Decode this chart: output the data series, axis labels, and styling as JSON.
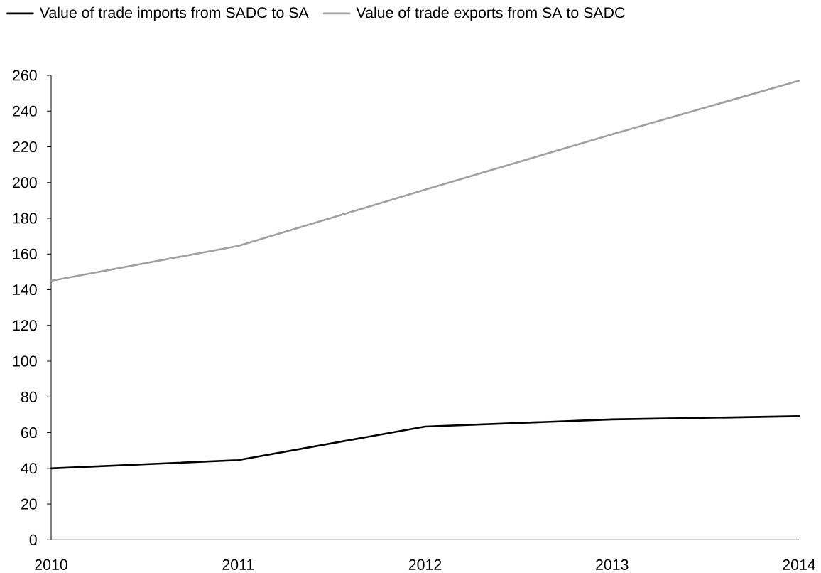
{
  "chart_data": {
    "type": "line",
    "categories": [
      "2010",
      "2011",
      "2012",
      "2013",
      "2014"
    ],
    "series": [
      {
        "name": "Value of trade imports from SADC to SA",
        "color": "#000000",
        "values": [
          40,
          44.6,
          63.4,
          67.4,
          69.2
        ]
      },
      {
        "name": "Value of trade exports from SA to SADC",
        "color": "#a0a0a0",
        "values": [
          145,
          164.5,
          196,
          227,
          257
        ]
      }
    ],
    "ylim": [
      0,
      260
    ],
    "yticks": [
      0,
      20,
      40,
      60,
      80,
      100,
      120,
      140,
      160,
      180,
      200,
      220,
      240,
      260
    ],
    "legend": "top left"
  }
}
